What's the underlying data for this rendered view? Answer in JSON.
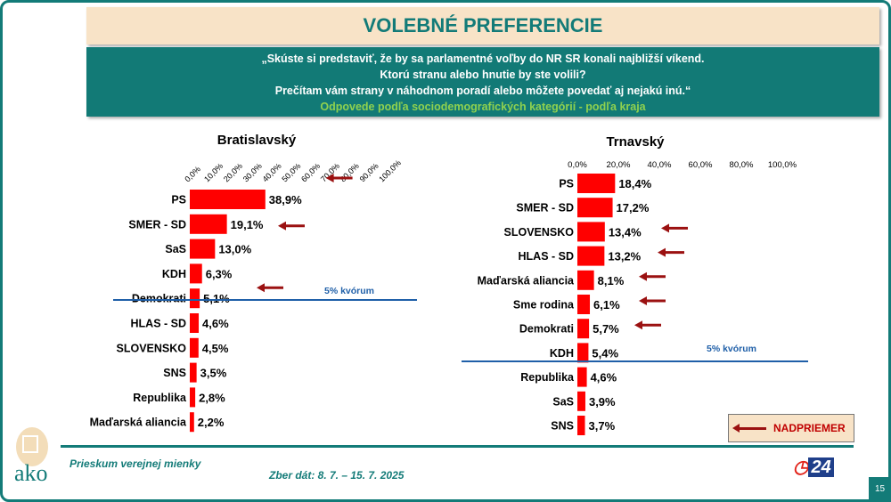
{
  "header": {
    "title": "VOLEBNÉ PREFERENCIE",
    "question": [
      "„Skúste si predstaviť, že by sa parlamentné voľby do NR SR konali najbližší víkend.",
      "Ktorú stranu alebo hnutie by ste volili?",
      "Prečítam vám strany v náhodnom poradí alebo môžete povedať aj nejakú inú.“"
    ],
    "subtitle": "Odpovede podľa sociodemografických kategórií - podľa kraja"
  },
  "colors": {
    "bar": "#ff0000",
    "teal": "#137b78",
    "arrow": "#9b1111",
    "quorum_line": "#1f5fa8"
  },
  "chart_data": [
    {
      "type": "bar",
      "orientation": "horizontal",
      "title": "Bratislavský",
      "xlim": [
        0,
        100
      ],
      "ticks": [
        "0,0%",
        "10,0%",
        "20,0%",
        "30,0%",
        "40,0%",
        "50,0%",
        "60,0%",
        "70,0%",
        "80,0%",
        "90,0%",
        "100,0%"
      ],
      "categories": [
        "PS",
        "SMER - SD",
        "SaS",
        "KDH",
        "Demokrati",
        "HLAS - SD",
        "SLOVENSKO",
        "SNS",
        "Republika",
        "Maďarská aliancia"
      ],
      "values": [
        38.9,
        19.1,
        13.0,
        6.3,
        5.1,
        4.6,
        4.5,
        3.5,
        2.8,
        2.2
      ],
      "labels": [
        "38,9%",
        "19,1%",
        "13,0%",
        "6,3%",
        "5,1%",
        "4,6%",
        "4,5%",
        "3,5%",
        "2,8%",
        "2,2%"
      ],
      "above_average": [
        "PS",
        "SMER - SD",
        "Demokrati"
      ],
      "quorum": {
        "value": 5,
        "label": "5% kvórum"
      }
    },
    {
      "type": "bar",
      "orientation": "horizontal",
      "title": "Trnavský",
      "xlim": [
        0,
        100
      ],
      "ticks": [
        "0,0%",
        "20,0%",
        "40,0%",
        "60,0%",
        "80,0%",
        "100,0%"
      ],
      "categories": [
        "PS",
        "SMER - SD",
        "SLOVENSKO",
        "HLAS - SD",
        "Maďarská aliancia",
        "Sme rodina",
        "Demokrati",
        "KDH",
        "Republika",
        "SaS",
        "SNS"
      ],
      "values": [
        18.4,
        17.2,
        13.4,
        13.2,
        8.1,
        6.1,
        5.7,
        5.4,
        4.6,
        3.9,
        3.7
      ],
      "labels": [
        "18,4%",
        "17,2%",
        "13,4%",
        "13,2%",
        "8,1%",
        "6,1%",
        "5,7%",
        "5,4%",
        "4,6%",
        "3,9%",
        "3,7%"
      ],
      "above_average": [
        "SLOVENSKO",
        "HLAS - SD",
        "Maďarská aliancia",
        "Sme rodina",
        "Demokrati"
      ],
      "quorum": {
        "value": 5,
        "label": "5% kvórum"
      }
    }
  ],
  "legend": {
    "label": "NADPRIEMER"
  },
  "footer": {
    "survey": "Prieskum verejnej mienky",
    "dates": "Zber dát: 8. 7. – 15. 7. 2025",
    "logo_text": "ako",
    "tv_logo": "24",
    "page": "15"
  }
}
